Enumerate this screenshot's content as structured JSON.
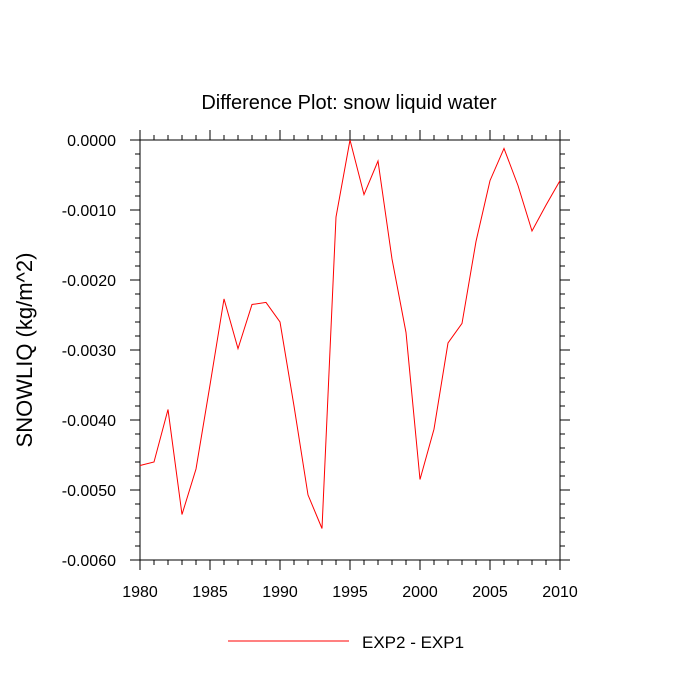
{
  "chart_data": {
    "type": "line",
    "title": "Difference Plot: snow liquid water",
    "xlabel": "",
    "ylabel": "SNOWLIQ  (kg/m^2)",
    "xlim": [
      1980,
      2010
    ],
    "ylim": [
      -0.006,
      0.0
    ],
    "x_ticks": [
      1980,
      1985,
      1990,
      1995,
      2000,
      2005,
      2010
    ],
    "x_tick_labels": [
      "1980",
      "1985",
      "1990",
      "1995",
      "2000",
      "2005",
      "2010"
    ],
    "y_ticks": [
      0.0,
      -0.001,
      -0.002,
      -0.003,
      -0.004,
      -0.005,
      -0.006
    ],
    "y_tick_labels": [
      "0.0000",
      "-0.0010",
      "-0.0020",
      "-0.0030",
      "-0.0040",
      "-0.0050",
      "-0.0060"
    ],
    "grid": false,
    "legend_position": "bottom-center",
    "x": [
      1980,
      1981,
      1982,
      1983,
      1984,
      1985,
      1986,
      1987,
      1988,
      1989,
      1990,
      1991,
      1992,
      1993,
      1994,
      1995,
      1996,
      1997,
      1998,
      1999,
      2000,
      2001,
      2002,
      2003,
      2004,
      2005,
      2006,
      2007,
      2008,
      2009,
      2010
    ],
    "series": [
      {
        "name": "EXP2 - EXP1",
        "color": "#ff0000",
        "values": [
          -0.00465,
          -0.0046,
          -0.00385,
          -0.00535,
          -0.0047,
          -0.0035,
          -0.00227,
          -0.00298,
          -0.00235,
          -0.00232,
          -0.0026,
          -0.0038,
          -0.00507,
          -0.00555,
          -0.0011,
          0.0,
          -0.00078,
          -0.0003,
          -0.0017,
          -0.00275,
          -0.00485,
          -0.00413,
          -0.0029,
          -0.00262,
          -0.00145,
          -0.00058,
          -0.00012,
          -0.00065,
          -0.0013,
          -0.00093,
          -0.00058
        ]
      }
    ]
  }
}
